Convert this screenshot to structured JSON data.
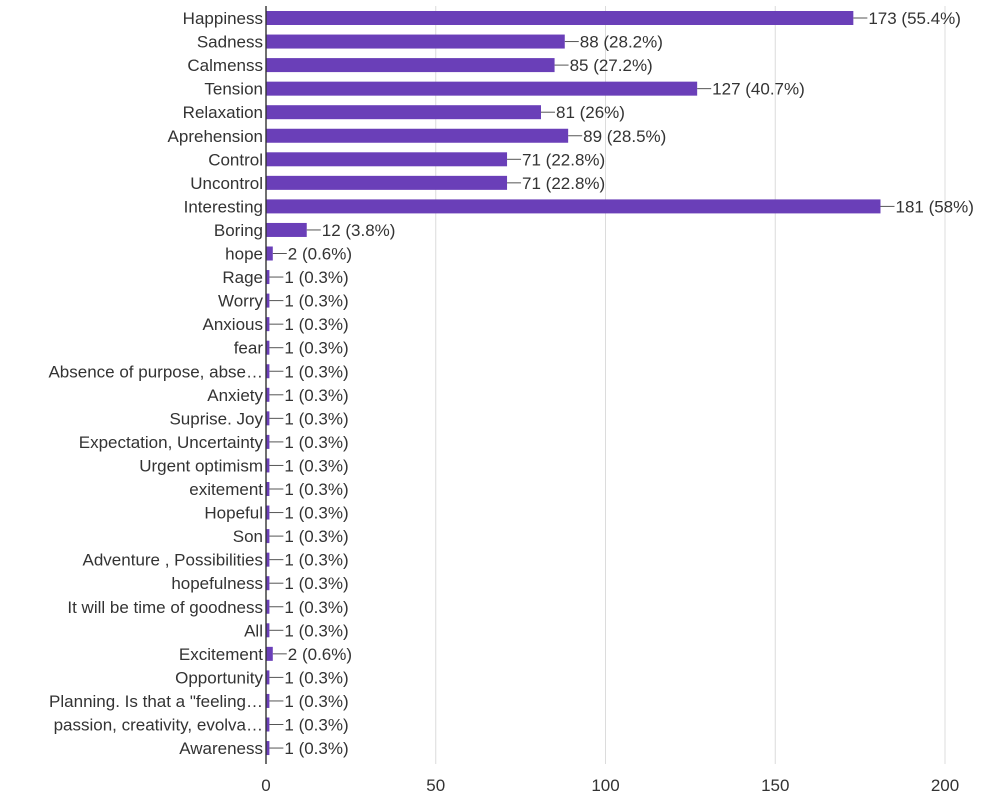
{
  "chart_data": {
    "type": "bar",
    "orientation": "horizontal",
    "color": "#6a3fb8",
    "xlim": [
      0,
      200
    ],
    "x_ticks": [
      0,
      50,
      100,
      150,
      200
    ],
    "grid": true,
    "categories": [
      "Happiness",
      "Sadness",
      "Calmenss",
      "Tension",
      "Relaxation",
      "Aprehension",
      "Control",
      "Uncontrol",
      "Interesting",
      "Boring",
      "hope",
      "Rage",
      "Worry",
      "Anxious",
      "fear",
      "Absence of purpose, abse…",
      "Anxiety",
      "Suprise. Joy",
      "Expectation, Uncertainty",
      "Urgent optimism",
      "exitement",
      "Hopeful",
      "Son",
      "Adventure , Possibilities",
      "hopefulness",
      "It will be time of goodness",
      "All",
      "Excitement",
      "Opportunity",
      "Planning. Is that a \"feeling…",
      "passion, creativity, evolva…",
      "Awareness"
    ],
    "values": [
      173,
      88,
      85,
      127,
      81,
      89,
      71,
      71,
      181,
      12,
      2,
      1,
      1,
      1,
      1,
      1,
      1,
      1,
      1,
      1,
      1,
      1,
      1,
      1,
      1,
      1,
      1,
      2,
      1,
      1,
      1,
      1
    ],
    "value_labels": [
      "173 (55.4%)",
      "88 (28.2%)",
      "85 (27.2%)",
      "127 (40.7%)",
      "81 (26%)",
      "89 (28.5%)",
      "71 (22.8%)",
      "71 (22.8%)",
      "181 (58%)",
      "12 (3.8%)",
      "2 (0.6%)",
      "1 (0.3%)",
      "1 (0.3%)",
      "1 (0.3%)",
      "1 (0.3%)",
      "1 (0.3%)",
      "1 (0.3%)",
      "1 (0.3%)",
      "1 (0.3%)",
      "1 (0.3%)",
      "1 (0.3%)",
      "1 (0.3%)",
      "1 (0.3%)",
      "1 (0.3%)",
      "1 (0.3%)",
      "1 (0.3%)",
      "1 (0.3%)",
      "2 (0.6%)",
      "1 (0.3%)",
      "1 (0.3%)",
      "1 (0.3%)",
      "1 (0.3%)"
    ]
  }
}
